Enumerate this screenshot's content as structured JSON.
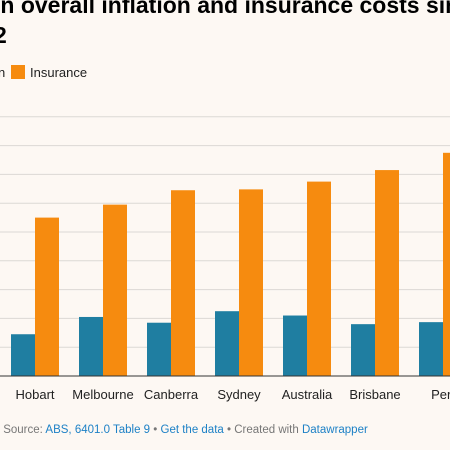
{
  "title": {
    "line1": "in overall inflation and insurance costs sin",
    "line2": "2"
  },
  "legend": {
    "partial_label": "n",
    "items": [
      {
        "label": "Insurance",
        "color": "#f68b0f"
      }
    ]
  },
  "colors": {
    "series_a": "#1f7ea1",
    "series_b": "#f68b0f",
    "grid": "#dcd9d5"
  },
  "chart_data": {
    "type": "bar",
    "categories": [
      "Hobart",
      "Melbourne",
      "Canberra",
      "Sydney",
      "Australia",
      "Brisbane",
      "Perth"
    ],
    "visible_last_label": "Pert",
    "series": [
      {
        "values": [
          14.5,
          20.5,
          18.5,
          22.5,
          21.0,
          18.0,
          18.7
        ]
      },
      {
        "name": "Insurance",
        "values": [
          55.0,
          59.5,
          64.5,
          64.8,
          67.5,
          71.5,
          77.5
        ]
      }
    ]
  },
  "footer": {
    "prefix": "• Source: ",
    "source_link": "ABS, 6401.0 Table 9",
    "sep1": " • ",
    "data_link": "Get the data",
    "sep2": " • Created with ",
    "tool_link": "Datawrapper"
  }
}
